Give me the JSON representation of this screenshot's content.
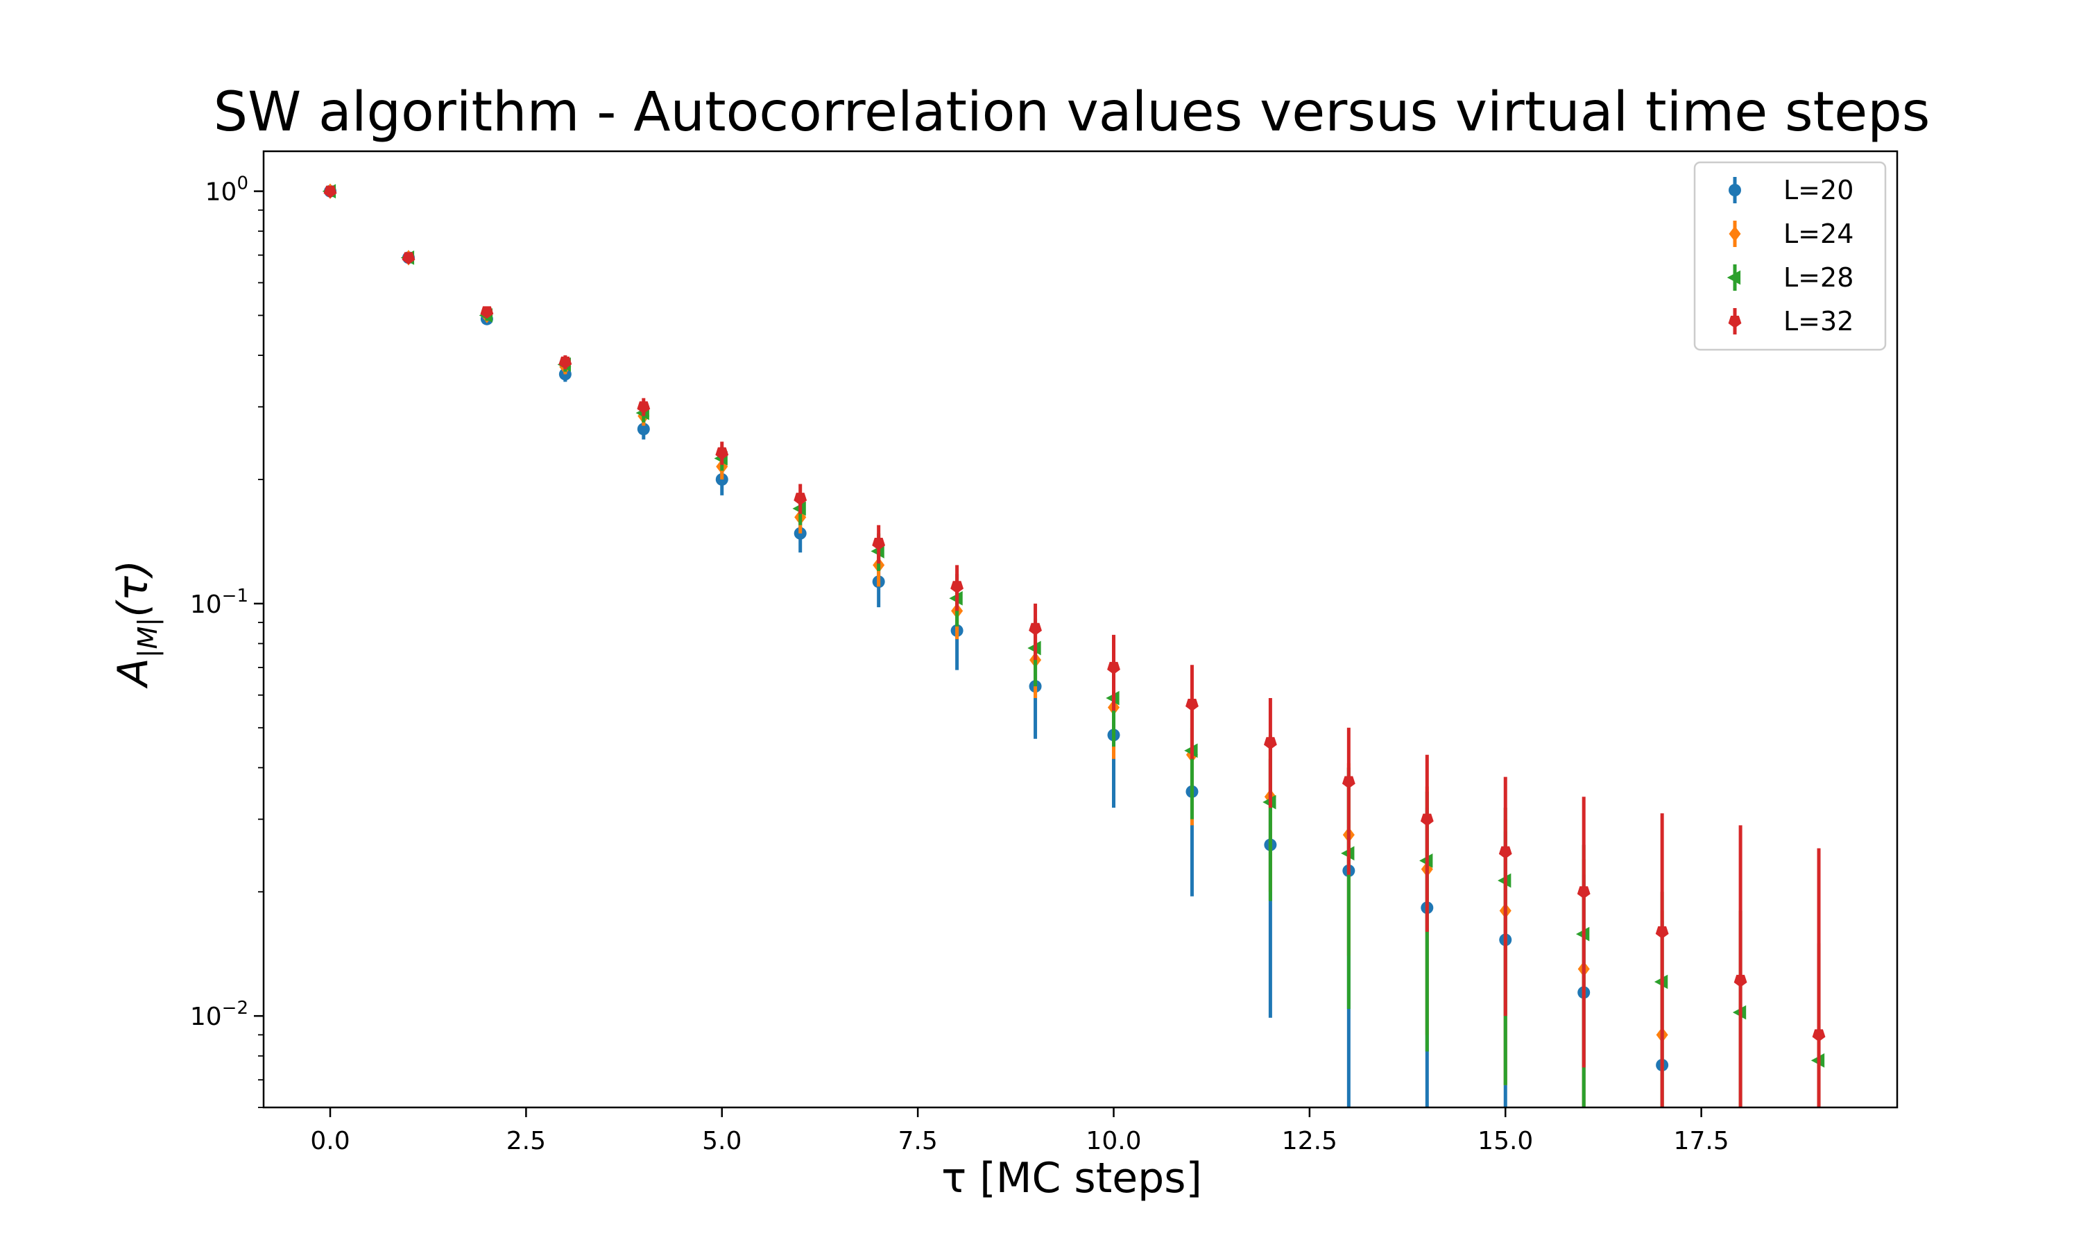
{
  "chart_data": {
    "type": "scatter",
    "title": "SW algorithm - Autocorrelation values versus virtual time steps",
    "xlabel": "τ [MC steps]",
    "ylabel": {
      "base": "A",
      "subscript": "|M|",
      "suffix": "(τ)"
    },
    "xlim": [
      -0.85,
      20.0
    ],
    "ylim": [
      0.006,
      1.25
    ],
    "yscale": "log",
    "grid": false,
    "legend_position": "top-right",
    "x_ticks": [
      0.0,
      2.5,
      5.0,
      7.5,
      10.0,
      12.5,
      15.0,
      17.5
    ],
    "x_tick_labels": [
      "0.0",
      "2.5",
      "5.0",
      "7.5",
      "10.0",
      "12.5",
      "15.0",
      "17.5"
    ],
    "y_ticks": [
      {
        "value": 1,
        "base": "10",
        "exp": "0"
      },
      {
        "value": 0.1,
        "base": "10",
        "exp": "−1"
      },
      {
        "value": 0.01,
        "base": "10",
        "exp": "−2"
      }
    ],
    "series": [
      {
        "name": "L=20",
        "color": "#1f77b4",
        "marker": "circle",
        "x": [
          0,
          1,
          2,
          3,
          4,
          5,
          6,
          7,
          8,
          9,
          10,
          11,
          12,
          13,
          14,
          15,
          16,
          17
        ],
        "y": [
          1.0,
          0.69,
          0.49,
          0.36,
          0.265,
          0.2,
          0.148,
          0.113,
          0.086,
          0.063,
          0.048,
          0.035,
          0.026,
          0.0225,
          0.0183,
          0.0153,
          0.0114,
          0.0076
        ],
        "lower": [
          0.99,
          0.675,
          0.475,
          0.345,
          0.25,
          0.183,
          0.133,
          0.098,
          0.069,
          0.047,
          0.032,
          0.0195,
          0.0099,
          0.005,
          0.005,
          0.005,
          0.005,
          0.005
        ],
        "upper": [
          1.01,
          0.705,
          0.505,
          0.375,
          0.28,
          0.217,
          0.163,
          0.128,
          0.103,
          0.079,
          0.064,
          0.05,
          0.042,
          0.04,
          0.032,
          0.028,
          0.022,
          0.017
        ]
      },
      {
        "name": "L=24",
        "color": "#ff7f0e",
        "marker": "diamond",
        "x": [
          0,
          1,
          2,
          3,
          4,
          5,
          6,
          7,
          8,
          9,
          10,
          11,
          12,
          13,
          14,
          15,
          16,
          17
        ],
        "y": [
          1.0,
          0.69,
          0.5,
          0.375,
          0.285,
          0.215,
          0.162,
          0.124,
          0.096,
          0.073,
          0.056,
          0.043,
          0.034,
          0.0275,
          0.0227,
          0.018,
          0.013,
          0.009
        ],
        "lower": [
          0.99,
          0.675,
          0.485,
          0.36,
          0.27,
          0.2,
          0.148,
          0.11,
          0.082,
          0.059,
          0.042,
          0.029,
          0.02,
          0.014,
          0.009,
          0.0068,
          0.005,
          0.005
        ],
        "upper": [
          1.01,
          0.705,
          0.515,
          0.39,
          0.3,
          0.23,
          0.176,
          0.138,
          0.11,
          0.087,
          0.07,
          0.057,
          0.048,
          0.041,
          0.036,
          0.03,
          0.024,
          0.018
        ]
      },
      {
        "name": "L=28",
        "color": "#2ca02c",
        "marker": "triangle-left",
        "x": [
          0,
          1,
          2,
          3,
          4,
          5,
          6,
          7,
          8,
          9,
          10,
          11,
          12,
          13,
          14,
          15,
          16,
          17,
          18,
          19
        ],
        "y": [
          1.0,
          0.69,
          0.5,
          0.38,
          0.29,
          0.225,
          0.17,
          0.134,
          0.103,
          0.078,
          0.059,
          0.044,
          0.033,
          0.0248,
          0.0238,
          0.0213,
          0.0158,
          0.0121,
          0.0102,
          0.0078
        ],
        "lower": [
          0.99,
          0.675,
          0.485,
          0.365,
          0.275,
          0.21,
          0.155,
          0.12,
          0.088,
          0.063,
          0.045,
          0.03,
          0.019,
          0.0104,
          0.0082,
          0.0068,
          0.005,
          0.005,
          0.005,
          0.005
        ],
        "upper": [
          1.01,
          0.705,
          0.515,
          0.395,
          0.305,
          0.24,
          0.185,
          0.148,
          0.118,
          0.092,
          0.074,
          0.058,
          0.047,
          0.04,
          0.035,
          0.032,
          0.026,
          0.02,
          0.018,
          0.015
        ]
      },
      {
        "name": "L=32",
        "color": "#d62728",
        "marker": "pentagon",
        "x": [
          0,
          1,
          2,
          3,
          4,
          5,
          6,
          7,
          8,
          9,
          10,
          11,
          12,
          13,
          14,
          15,
          16,
          17,
          18,
          19
        ],
        "y": [
          1.0,
          0.69,
          0.51,
          0.385,
          0.3,
          0.232,
          0.18,
          0.14,
          0.11,
          0.087,
          0.07,
          0.057,
          0.046,
          0.037,
          0.03,
          0.025,
          0.02,
          0.016,
          0.0122,
          0.009
        ],
        "lower": [
          0.99,
          0.675,
          0.495,
          0.37,
          0.285,
          0.217,
          0.165,
          0.125,
          0.096,
          0.073,
          0.055,
          0.042,
          0.032,
          0.022,
          0.016,
          0.01,
          0.0075,
          0.005,
          0.005,
          0.005
        ],
        "upper": [
          1.01,
          0.705,
          0.525,
          0.4,
          0.315,
          0.247,
          0.195,
          0.155,
          0.124,
          0.1,
          0.084,
          0.071,
          0.059,
          0.05,
          0.043,
          0.038,
          0.034,
          0.031,
          0.029,
          0.0255
        ]
      }
    ]
  }
}
